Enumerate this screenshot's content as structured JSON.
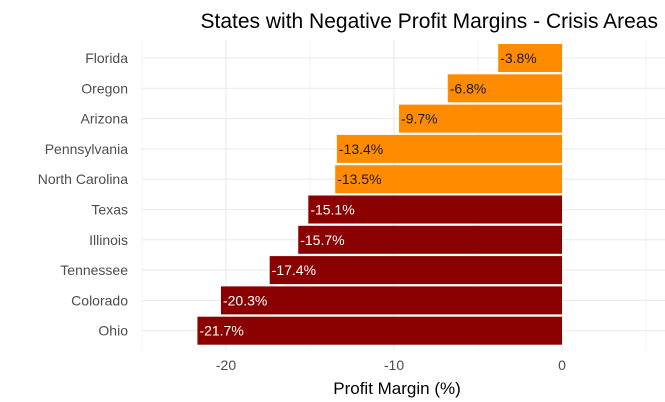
{
  "chart_data": {
    "type": "bar",
    "orientation": "horizontal",
    "title": "States with Negative Profit Margins - Crisis Areas",
    "xlabel": "Profit Margin (%)",
    "ylabel": "",
    "xlim": [
      -25,
      5.5
    ],
    "x_ticks": [
      -20,
      -10,
      0
    ],
    "grid": true,
    "categories": [
      "Florida",
      "Oregon",
      "Arizona",
      "Pennsylvania",
      "North Carolina",
      "Texas",
      "Illinois",
      "Tennessee",
      "Colorado",
      "Ohio"
    ],
    "values": [
      -3.8,
      -6.8,
      -9.7,
      -13.4,
      -13.5,
      -15.1,
      -15.7,
      -17.4,
      -20.3,
      -21.7
    ],
    "labels": [
      "-3.8%",
      "-6.8%",
      "-9.7%",
      "-13.4%",
      "-13.5%",
      "-15.1%",
      "-15.7%",
      "-17.4%",
      "-20.3%",
      "-21.7%"
    ],
    "severity_threshold": -15,
    "colors": {
      "moderate": "#ff8c00",
      "severe": "#8b0000",
      "grid": "#ebebeb"
    }
  }
}
